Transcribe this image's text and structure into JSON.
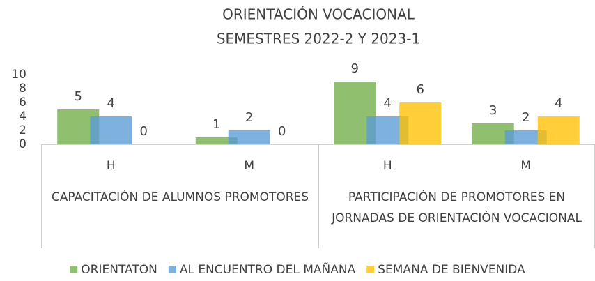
{
  "chart_data": {
    "type": "bar",
    "title": "ORIENTACIÓN VOCACIONAL",
    "subtitle": "SEMESTRES 2022-2 Y 2023-1",
    "groups": [
      {
        "label": "CAPACITACIÓN DE ALUMNOS PROMOTORES",
        "categories": [
          "H",
          "M"
        ]
      },
      {
        "label": "PARTICIPACIÓN DE PROMOTORES EN JORNADAS DE ORIENTACIÓN VOCACIONAL",
        "categories": [
          "H",
          "M"
        ]
      }
    ],
    "series": [
      {
        "name": "ORIENTATON",
        "color": "#70ad47",
        "values": [
          5,
          1,
          9,
          3
        ]
      },
      {
        "name": "AL ENCUENTRO DEL MAÑANA",
        "color": "#5b9bd5",
        "values": [
          4,
          2,
          4,
          2
        ]
      },
      {
        "name": "SEMANA DE BIENVENIDA",
        "color": "#ffc000",
        "values": [
          0,
          0,
          6,
          4
        ]
      }
    ],
    "ylim": [
      0,
      10
    ],
    "yticks": [
      0,
      2,
      4,
      6,
      8,
      10
    ],
    "grid": false,
    "legend": "bottom"
  }
}
